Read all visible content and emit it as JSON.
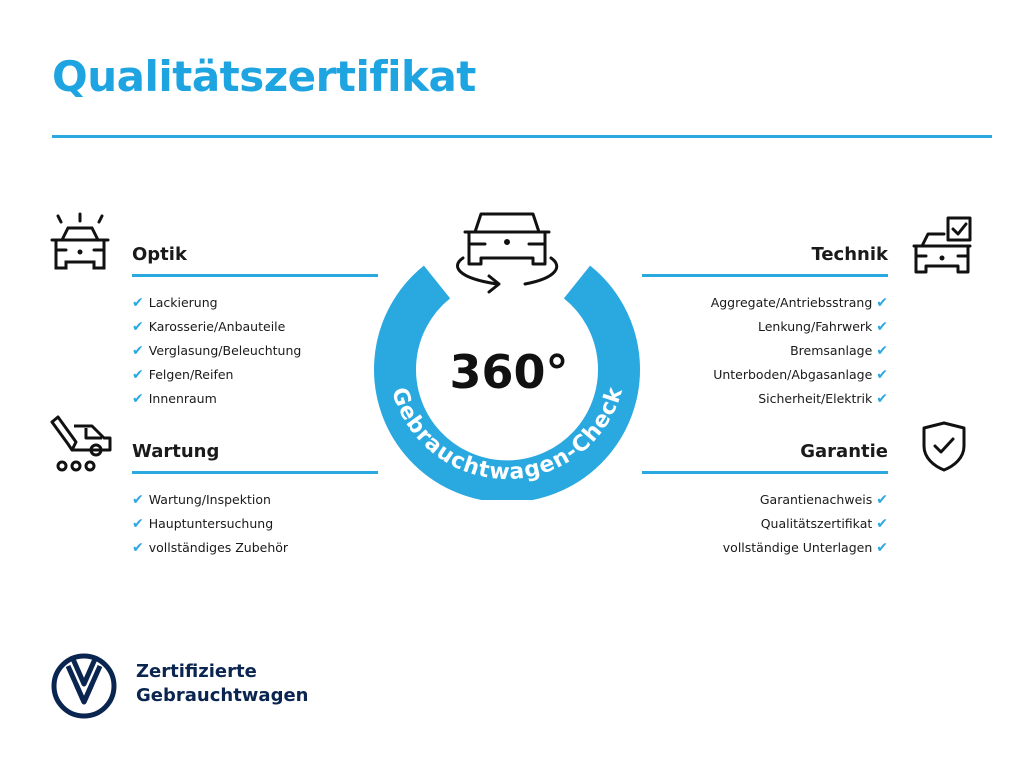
{
  "title": "Qualitätszertifikat",
  "center": {
    "value": "360°",
    "ring_text": "Gebrauchtwagen-Check"
  },
  "sections": {
    "optik": {
      "heading": "Optik",
      "icon": "car-lights-icon",
      "items": [
        "Lackierung",
        "Karosserie/Anbauteile",
        "Verglasung/Beleuchtung",
        "Felgen/Reifen",
        "Innenraum"
      ]
    },
    "wartung": {
      "heading": "Wartung",
      "icon": "service-van-icon",
      "items": [
        "Wartung/Inspektion",
        "Hauptuntersuchung",
        "vollständiges Zubehör"
      ]
    },
    "technik": {
      "heading": "Technik",
      "icon": "car-checkbox-icon",
      "items": [
        "Aggregate/Antriebsstrang",
        "Lenkung/Fahrwerk",
        "Bremsanlage",
        "Unterboden/Abgasanlage",
        "Sicherheit/Elektrik"
      ]
    },
    "garantie": {
      "heading": "Garantie",
      "icon": "shield-check-icon",
      "items": [
        "Garantienachweis",
        "Qualitätszertifikat",
        "vollständige Unterlagen"
      ]
    }
  },
  "check_mark": "✔",
  "brand": {
    "line1": "Zertifizierte",
    "line2": "Gebrauchtwagen",
    "logo": "VW"
  },
  "colors": {
    "accent": "#2aa8e0",
    "title": "#1ea4e0",
    "brand": "#0a2550"
  }
}
